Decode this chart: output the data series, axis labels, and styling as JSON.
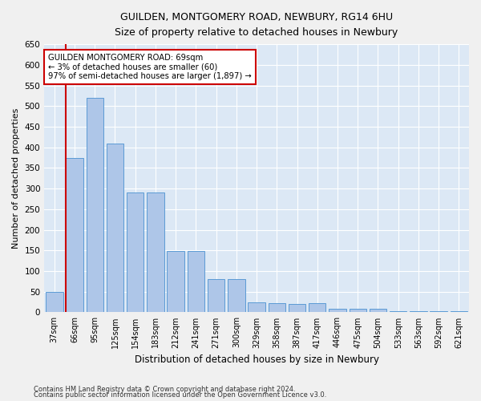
{
  "title1": "GUILDEN, MONTGOMERY ROAD, NEWBURY, RG14 6HU",
  "title2": "Size of property relative to detached houses in Newbury",
  "xlabel": "Distribution of detached houses by size in Newbury",
  "ylabel": "Number of detached properties",
  "categories": [
    "37sqm",
    "66sqm",
    "95sqm",
    "125sqm",
    "154sqm",
    "183sqm",
    "212sqm",
    "241sqm",
    "271sqm",
    "300sqm",
    "329sqm",
    "358sqm",
    "387sqm",
    "417sqm",
    "446sqm",
    "475sqm",
    "504sqm",
    "533sqm",
    "563sqm",
    "592sqm",
    "621sqm"
  ],
  "values": [
    50,
    375,
    520,
    410,
    290,
    290,
    148,
    148,
    80,
    80,
    25,
    22,
    20,
    22,
    8,
    8,
    8,
    3,
    3,
    3,
    3
  ],
  "bar_color": "#aec6e8",
  "bar_edge_color": "#5b9bd5",
  "vline_color": "#cc0000",
  "vline_pos": 0.575,
  "annotation_title": "GUILDEN MONTGOMERY ROAD: 69sqm",
  "annotation_line2": "← 3% of detached houses are smaller (60)",
  "annotation_line3": "97% of semi-detached houses are larger (1,897) →",
  "annotation_box_color": "#cc0000",
  "ylim": [
    0,
    650
  ],
  "yticks": [
    0,
    50,
    100,
    150,
    200,
    250,
    300,
    350,
    400,
    450,
    500,
    550,
    600,
    650
  ],
  "bg_color": "#dce8f5",
  "grid_color": "#ffffff",
  "fig_bg_color": "#f0f0f0",
  "footer1": "Contains HM Land Registry data © Crown copyright and database right 2024.",
  "footer2": "Contains public sector information licensed under the Open Government Licence v3.0."
}
